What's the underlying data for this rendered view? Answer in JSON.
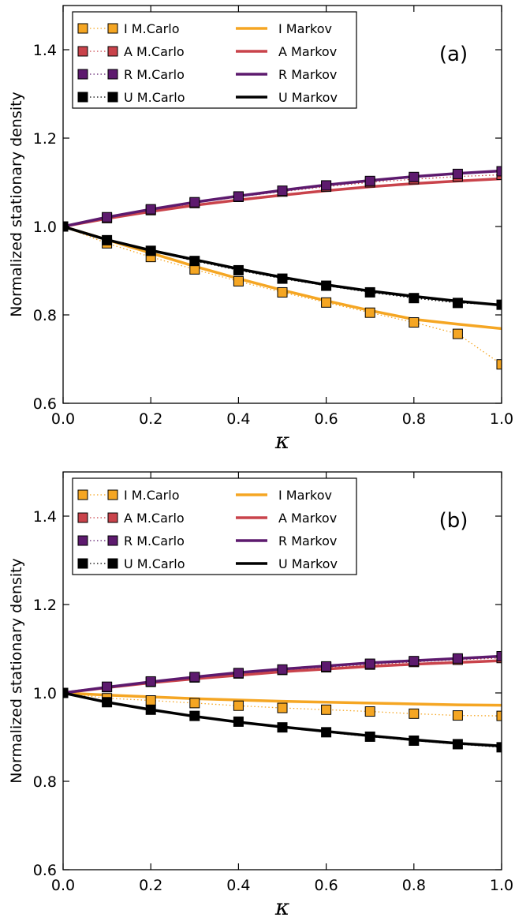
{
  "chart_data": [
    {
      "type": "line",
      "panel_label": "(a)",
      "xlabel": "κ",
      "ylabel": "Normalized stationary density",
      "xlim": [
        0.0,
        1.0
      ],
      "ylim": [
        0.6,
        1.5
      ],
      "xticks": [
        0.0,
        0.2,
        0.4,
        0.6,
        0.8,
        1.0
      ],
      "xtick_labels": [
        "0.0",
        "0.2",
        "0.4",
        "0.6",
        "0.8",
        "1.0"
      ],
      "yticks": [
        0.6,
        0.8,
        1.0,
        1.2,
        1.4
      ],
      "ytick_labels": [
        "0.6",
        "0.8",
        "1.0",
        "1.2",
        "1.4"
      ],
      "grid": false,
      "legend_position": "top-left, two columns",
      "x": [
        0.0,
        0.1,
        0.2,
        0.3,
        0.4,
        0.5,
        0.6,
        0.7,
        0.8,
        0.9,
        1.0
      ],
      "series": [
        {
          "name": "I M.Carlo",
          "kind": "markers",
          "color": "#f5a623",
          "values": [
            1.0,
            0.962,
            0.931,
            0.903,
            0.876,
            0.851,
            0.828,
            0.805,
            0.783,
            0.757,
            0.688
          ]
        },
        {
          "name": "A M.Carlo",
          "kind": "markers",
          "color": "#c9434b",
          "values": [
            1.0,
            1.019,
            1.037,
            1.053,
            1.067,
            1.079,
            1.09,
            1.1,
            1.107,
            1.113,
            1.117
          ]
        },
        {
          "name": "R M.Carlo",
          "kind": "markers",
          "color": "#5d1a6e",
          "values": [
            1.0,
            1.021,
            1.039,
            1.055,
            1.068,
            1.081,
            1.093,
            1.103,
            1.112,
            1.119,
            1.125
          ]
        },
        {
          "name": "U M.Carlo",
          "kind": "markers",
          "color": "#000000",
          "values": [
            1.0,
            0.969,
            0.945,
            0.922,
            0.901,
            0.882,
            0.866,
            0.851,
            0.838,
            0.827,
            0.823
          ]
        },
        {
          "name": "I Markov",
          "kind": "line",
          "color": "#f5a623",
          "values": [
            1.0,
            0.97,
            0.94,
            0.91,
            0.882,
            0.856,
            0.832,
            0.81,
            0.79,
            0.779,
            0.769
          ]
        },
        {
          "name": "A Markov",
          "kind": "line",
          "color": "#c9434b",
          "values": [
            1.0,
            1.018,
            1.034,
            1.048,
            1.06,
            1.071,
            1.081,
            1.09,
            1.097,
            1.103,
            1.108
          ]
        },
        {
          "name": "R Markov",
          "kind": "line",
          "color": "#5d1a6e",
          "values": [
            1.0,
            1.021,
            1.039,
            1.055,
            1.069,
            1.082,
            1.094,
            1.104,
            1.113,
            1.12,
            1.126
          ]
        },
        {
          "name": "U Markov",
          "kind": "line",
          "color": "#000000",
          "values": [
            1.0,
            0.97,
            0.946,
            0.925,
            0.904,
            0.885,
            0.868,
            0.854,
            0.842,
            0.831,
            0.822
          ]
        }
      ]
    },
    {
      "type": "line",
      "panel_label": "(b)",
      "xlabel": "κ",
      "ylabel": "Normalized stationary density",
      "xlim": [
        0.0,
        1.0
      ],
      "ylim": [
        0.6,
        1.5
      ],
      "xticks": [
        0.0,
        0.2,
        0.4,
        0.6,
        0.8,
        1.0
      ],
      "xtick_labels": [
        "0.0",
        "0.2",
        "0.4",
        "0.6",
        "0.8",
        "1.0"
      ],
      "yticks": [
        0.6,
        0.8,
        1.0,
        1.2,
        1.4
      ],
      "ytick_labels": [
        "0.6",
        "0.8",
        "1.0",
        "1.2",
        "1.4"
      ],
      "grid": false,
      "legend_position": "top-left, two columns",
      "x": [
        0.0,
        0.1,
        0.2,
        0.3,
        0.4,
        0.5,
        0.6,
        0.7,
        0.8,
        0.9,
        1.0
      ],
      "series": [
        {
          "name": "I M.Carlo",
          "kind": "markers",
          "color": "#f5a623",
          "values": [
            1.0,
            0.988,
            0.983,
            0.977,
            0.971,
            0.966,
            0.962,
            0.958,
            0.953,
            0.949,
            0.948
          ]
        },
        {
          "name": "A M.Carlo",
          "kind": "markers",
          "color": "#c9434b",
          "values": [
            1.0,
            1.013,
            1.025,
            1.035,
            1.044,
            1.052,
            1.058,
            1.064,
            1.07,
            1.075,
            1.079
          ]
        },
        {
          "name": "R M.Carlo",
          "kind": "markers",
          "color": "#5d1a6e",
          "values": [
            1.0,
            1.014,
            1.026,
            1.036,
            1.045,
            1.053,
            1.06,
            1.066,
            1.072,
            1.078,
            1.083
          ]
        },
        {
          "name": "U M.Carlo",
          "kind": "markers",
          "color": "#000000",
          "values": [
            1.0,
            0.979,
            0.962,
            0.948,
            0.935,
            0.922,
            0.911,
            0.901,
            0.892,
            0.884,
            0.877
          ]
        },
        {
          "name": "I Markov",
          "kind": "line",
          "color": "#f5a623",
          "values": [
            1.0,
            0.995,
            0.991,
            0.987,
            0.984,
            0.981,
            0.979,
            0.977,
            0.975,
            0.973,
            0.972
          ]
        },
        {
          "name": "A Markov",
          "kind": "line",
          "color": "#c9434b",
          "values": [
            1.0,
            1.012,
            1.023,
            1.032,
            1.04,
            1.048,
            1.054,
            1.06,
            1.065,
            1.069,
            1.073
          ]
        },
        {
          "name": "R Markov",
          "kind": "line",
          "color": "#5d1a6e",
          "values": [
            1.0,
            1.013,
            1.025,
            1.036,
            1.046,
            1.054,
            1.061,
            1.068,
            1.073,
            1.078,
            1.083
          ]
        },
        {
          "name": "U Markov",
          "kind": "line",
          "color": "#000000",
          "values": [
            1.0,
            0.979,
            0.962,
            0.947,
            0.934,
            0.923,
            0.913,
            0.903,
            0.894,
            0.886,
            0.88
          ]
        }
      ]
    }
  ]
}
